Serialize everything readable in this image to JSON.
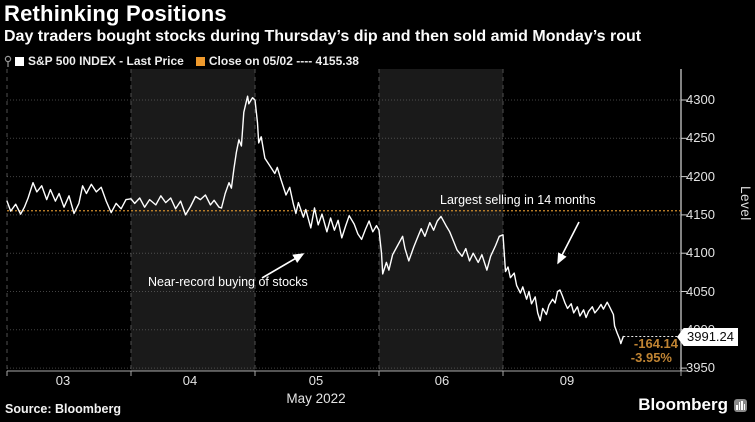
{
  "header": {
    "title": "Rethinking Positions",
    "subtitle": "Day traders bought stocks during Thursday’s dip and then sold amid Monday’s rout"
  },
  "legend": {
    "series1": "S&P 500 INDEX - Last Price",
    "series2": "Close on 05/02 ---- 4155.38"
  },
  "annotations": {
    "selling": "Largest selling in 14 months",
    "buying": "Near-record buying of stocks"
  },
  "price_labels": {
    "last": "3991.24",
    "change": "-164.14",
    "pct_change": "-3.95%"
  },
  "axes": {
    "y_title": "Level",
    "y_ticks": [
      4300,
      4250,
      4200,
      4150,
      4100,
      4050,
      4000,
      3950
    ],
    "x_ticks": [
      "03",
      "04",
      "05",
      "06",
      "09"
    ],
    "x_axis_label": "May 2022"
  },
  "footer": {
    "source": "Source: Bloomberg",
    "brand": "Bloomberg"
  },
  "colors": {
    "line_white": "#ffffff",
    "close_orange": "#cd8a2d",
    "change_orange": "#c08433",
    "legend_orange": "#ef9a2d",
    "band_gray": "#1a1a1a",
    "grid_gray": "#7a7a7a",
    "boundary_gray": "#4f4f4f",
    "axis_gray": "#a8a8a8",
    "tag_bg": "#ffffff",
    "tag_text": "#0a0a0a"
  },
  "chart_data": {
    "type": "line",
    "title": "Rethinking Positions",
    "subtitle": "Day traders bought stocks during Thursday’s dip and then sold amid Monday’s rout",
    "ylabel": "Level",
    "ylim": [
      3950,
      4300
    ],
    "grid": true,
    "close_reference": 4155.38,
    "close_reference_date": "05/02",
    "last_price": 3991.24,
    "net_change": -164.14,
    "pct_change": -3.95,
    "x_day_labels": [
      "03",
      "04",
      "05",
      "06",
      "09"
    ],
    "month_label": "May 2022",
    "series": [
      {
        "name": "S&P 500 INDEX - Last Price",
        "x_unit": "trading-day (0=May 3 open, 5=May 9 close area)",
        "points": [
          [
            0,
            4168
          ],
          [
            0.03,
            4155
          ],
          [
            0.07,
            4164
          ],
          [
            0.11,
            4151
          ],
          [
            0.14,
            4160
          ],
          [
            0.17,
            4172
          ],
          [
            0.21,
            4192
          ],
          [
            0.24,
            4180
          ],
          [
            0.28,
            4188
          ],
          [
            0.32,
            4170
          ],
          [
            0.35,
            4183
          ],
          [
            0.39,
            4168
          ],
          [
            0.42,
            4178
          ],
          [
            0.46,
            4160
          ],
          [
            0.5,
            4175
          ],
          [
            0.54,
            4152
          ],
          [
            0.58,
            4165
          ],
          [
            0.61,
            4188
          ],
          [
            0.64,
            4178
          ],
          [
            0.68,
            4190
          ],
          [
            0.72,
            4180
          ],
          [
            0.76,
            4186
          ],
          [
            0.8,
            4168
          ],
          [
            0.84,
            4153
          ],
          [
            0.88,
            4165
          ],
          [
            0.92,
            4158
          ],
          [
            0.96,
            4170
          ],
          [
            1,
            4171
          ],
          [
            1.03,
            4165
          ],
          [
            1.07,
            4172
          ],
          [
            1.11,
            4160
          ],
          [
            1.15,
            4170
          ],
          [
            1.2,
            4163
          ],
          [
            1.24,
            4175
          ],
          [
            1.28,
            4166
          ],
          [
            1.32,
            4172
          ],
          [
            1.36,
            4158
          ],
          [
            1.4,
            4168
          ],
          [
            1.44,
            4150
          ],
          [
            1.48,
            4161
          ],
          [
            1.52,
            4174
          ],
          [
            1.56,
            4170
          ],
          [
            1.6,
            4176
          ],
          [
            1.64,
            4163
          ],
          [
            1.67,
            4169
          ],
          [
            1.71,
            4160
          ],
          [
            1.73,
            4159
          ],
          [
            1.76,
            4178
          ],
          [
            1.79,
            4192
          ],
          [
            1.81,
            4185
          ],
          [
            1.83,
            4210
          ],
          [
            1.85,
            4232
          ],
          [
            1.87,
            4248
          ],
          [
            1.89,
            4240
          ],
          [
            1.91,
            4284
          ],
          [
            1.94,
            4305
          ],
          [
            1.95,
            4295
          ],
          [
            1.98,
            4303
          ],
          [
            2,
            4300
          ],
          [
            2.02,
            4270
          ],
          [
            2.03,
            4244
          ],
          [
            2.05,
            4252
          ],
          [
            2.08,
            4224
          ],
          [
            2.12,
            4214
          ],
          [
            2.16,
            4204
          ],
          [
            2.18,
            4212
          ],
          [
            2.21,
            4196
          ],
          [
            2.25,
            4176
          ],
          [
            2.28,
            4186
          ],
          [
            2.31,
            4164
          ],
          [
            2.33,
            4152
          ],
          [
            2.35,
            4166
          ],
          [
            2.39,
            4147
          ],
          [
            2.41,
            4157
          ],
          [
            2.45,
            4133
          ],
          [
            2.48,
            4159
          ],
          [
            2.51,
            4137
          ],
          [
            2.54,
            4151
          ],
          [
            2.58,
            4128
          ],
          [
            2.61,
            4146
          ],
          [
            2.64,
            4130
          ],
          [
            2.67,
            4143
          ],
          [
            2.7,
            4120
          ],
          [
            2.73,
            4135
          ],
          [
            2.76,
            4149
          ],
          [
            2.8,
            4138
          ],
          [
            2.83,
            4125
          ],
          [
            2.86,
            4118
          ],
          [
            2.89,
            4131
          ],
          [
            2.92,
            4142
          ],
          [
            2.95,
            4128
          ],
          [
            2.98,
            4136
          ],
          [
            3,
            4130
          ],
          [
            3.02,
            4100
          ],
          [
            3.03,
            4073
          ],
          [
            3.06,
            4088
          ],
          [
            3.08,
            4078
          ],
          [
            3.11,
            4098
          ],
          [
            3.15,
            4110
          ],
          [
            3.19,
            4122
          ],
          [
            3.21,
            4106
          ],
          [
            3.24,
            4090
          ],
          [
            3.28,
            4108
          ],
          [
            3.31,
            4120
          ],
          [
            3.34,
            4132
          ],
          [
            3.37,
            4122
          ],
          [
            3.41,
            4140
          ],
          [
            3.44,
            4130
          ],
          [
            3.47,
            4142
          ],
          [
            3.5,
            4148
          ],
          [
            3.54,
            4136
          ],
          [
            3.57,
            4128
          ],
          [
            3.6,
            4116
          ],
          [
            3.63,
            4104
          ],
          [
            3.67,
            4096
          ],
          [
            3.7,
            4106
          ],
          [
            3.73,
            4090
          ],
          [
            3.76,
            4100
          ],
          [
            3.8,
            4088
          ],
          [
            3.83,
            4098
          ],
          [
            3.87,
            4078
          ],
          [
            3.9,
            4096
          ],
          [
            3.94,
            4110
          ],
          [
            3.97,
            4122
          ],
          [
            4,
            4124
          ],
          [
            4.02,
            4076
          ],
          [
            4.04,
            4082
          ],
          [
            4.06,
            4068
          ],
          [
            4.09,
            4074
          ],
          [
            4.11,
            4058
          ],
          [
            4.14,
            4048
          ],
          [
            4.16,
            4056
          ],
          [
            4.19,
            4040
          ],
          [
            4.21,
            4050
          ],
          [
            4.23,
            4034
          ],
          [
            4.26,
            4043
          ],
          [
            4.28,
            4022
          ],
          [
            4.3,
            4012
          ],
          [
            4.32,
            4028
          ],
          [
            4.35,
            4020
          ],
          [
            4.37,
            4032
          ],
          [
            4.4,
            4040
          ],
          [
            4.42,
            4035
          ],
          [
            4.44,
            4050
          ],
          [
            4.46,
            4052
          ],
          [
            4.48,
            4044
          ],
          [
            4.5,
            4035
          ],
          [
            4.52,
            4028
          ],
          [
            4.55,
            4034
          ],
          [
            4.57,
            4022
          ],
          [
            4.6,
            4030
          ],
          [
            4.62,
            4018
          ],
          [
            4.65,
            4026
          ],
          [
            4.67,
            4016
          ],
          [
            4.69,
            4024
          ],
          [
            4.72,
            4030
          ],
          [
            4.74,
            4022
          ],
          [
            4.77,
            4028
          ],
          [
            4.79,
            4033
          ],
          [
            4.81,
            4027
          ],
          [
            4.84,
            4036
          ],
          [
            4.86,
            4030
          ],
          [
            4.89,
            4020
          ],
          [
            4.9,
            4005
          ],
          [
            4.92,
            3996
          ],
          [
            4.94,
            3988
          ],
          [
            4.95,
            3982
          ],
          [
            4.97,
            3991.24
          ]
        ]
      }
    ],
    "legend_position": "top-left"
  }
}
